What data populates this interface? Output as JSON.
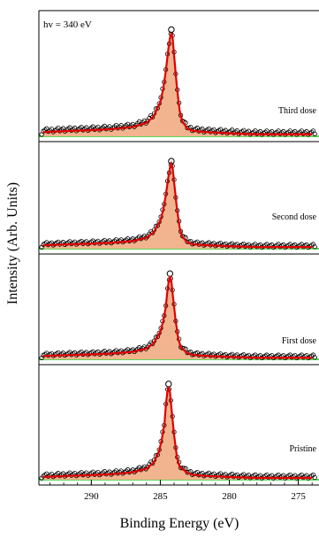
{
  "chart_data": {
    "type": "line",
    "annotation": "hv = 340 eV",
    "xlabel": "Binding Energy (eV)",
    "ylabel": "Intensity (Arb. Units)",
    "xlim": [
      293.8,
      273.5
    ],
    "x_reversed": true,
    "x_ticks": [
      290,
      285,
      280,
      275
    ],
    "x_tick_labels": [
      "290",
      "285",
      "280",
      "275"
    ],
    "ylim": [
      0,
      1
    ],
    "background_color": "#22cc22",
    "fit_color": "#e00000",
    "fill_color": "#f2b48e",
    "data_marker": "open circle",
    "panels": [
      {
        "label": "Third dose",
        "peak_energy": 284.2,
        "x": [
          293.5,
          292,
          290,
          288.5,
          287,
          286,
          285.5,
          285,
          284.8,
          284.6,
          284.4,
          284.3,
          284.2,
          284.1,
          284.0,
          283.8,
          283.6,
          283.4,
          283.0,
          282.5,
          281.5,
          280,
          278,
          276,
          274
        ],
        "y": [
          0.04,
          0.05,
          0.06,
          0.07,
          0.09,
          0.13,
          0.19,
          0.33,
          0.45,
          0.63,
          0.86,
          0.95,
          1.0,
          0.94,
          0.78,
          0.48,
          0.25,
          0.14,
          0.07,
          0.05,
          0.04,
          0.03,
          0.02,
          0.02,
          0.02
        ]
      },
      {
        "label": "Second dose",
        "peak_energy": 284.2,
        "x": [
          293.5,
          292,
          290,
          288.5,
          287,
          286,
          285.5,
          285,
          284.8,
          284.6,
          284.4,
          284.3,
          284.2,
          284.1,
          284.0,
          283.8,
          283.6,
          283.4,
          283.0,
          282.5,
          281.5,
          280,
          278,
          276,
          274
        ],
        "y": [
          0.04,
          0.05,
          0.06,
          0.07,
          0.09,
          0.13,
          0.19,
          0.33,
          0.45,
          0.63,
          0.86,
          0.95,
          1.0,
          0.94,
          0.78,
          0.48,
          0.25,
          0.14,
          0.07,
          0.05,
          0.04,
          0.03,
          0.02,
          0.02,
          0.02
        ]
      },
      {
        "label": "First dose",
        "peak_energy": 284.3,
        "x": [
          293.5,
          292,
          290,
          288.5,
          287,
          286,
          285.5,
          285,
          284.8,
          284.6,
          284.5,
          284.4,
          284.3,
          284.2,
          284.1,
          283.9,
          283.7,
          283.5,
          283.0,
          282.5,
          281.5,
          280,
          278,
          276,
          274
        ],
        "y": [
          0.04,
          0.05,
          0.06,
          0.07,
          0.09,
          0.13,
          0.19,
          0.33,
          0.45,
          0.63,
          0.8,
          0.93,
          1.0,
          0.94,
          0.78,
          0.48,
          0.25,
          0.14,
          0.07,
          0.05,
          0.04,
          0.03,
          0.02,
          0.02,
          0.02
        ]
      },
      {
        "label": "Pristine",
        "peak_energy": 284.4,
        "x": [
          293.5,
          292,
          290,
          288.5,
          287,
          286,
          285.5,
          285.1,
          284.9,
          284.7,
          284.6,
          284.5,
          284.4,
          284.3,
          284.2,
          284.0,
          283.8,
          283.6,
          283.0,
          282.5,
          281.5,
          280,
          278,
          276,
          274
        ],
        "y": [
          0.03,
          0.04,
          0.05,
          0.06,
          0.08,
          0.12,
          0.18,
          0.3,
          0.43,
          0.6,
          0.8,
          0.93,
          1.0,
          0.94,
          0.78,
          0.48,
          0.25,
          0.14,
          0.07,
          0.05,
          0.04,
          0.03,
          0.02,
          0.02,
          0.02
        ]
      }
    ]
  }
}
